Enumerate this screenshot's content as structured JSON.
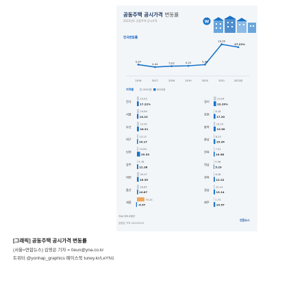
{
  "header": {
    "title_main": "공동주택 공시가격",
    "title_suffix": "변동률",
    "subtitle": "2022년도 공동주택 공시가격",
    "section_label": "전국변동률"
  },
  "chart_data": [
    {
      "type": "line",
      "x": [
        "2016",
        "2017",
        "2018",
        "2019",
        "2020",
        "2021",
        "2022년"
      ],
      "values": [
        5.97,
        4.44,
        5.02,
        5.23,
        5.98,
        19.05,
        17.22
      ],
      "value_labels": [
        "5.97",
        "4.44",
        "5.02",
        "5.23",
        "5.98",
        "19.05",
        "17.22%"
      ],
      "ylim": [
        0,
        22
      ],
      "grid": false,
      "color": "#1a73c7"
    },
    {
      "type": "bar",
      "legend": [
        "지역별",
        "2021년",
        "2022년"
      ],
      "series_colors": [
        "#c5d0da",
        "#1a73c7"
      ],
      "left": [
        {
          "region": "전국",
          "v2021": 19.05,
          "v2022": 17.22,
          "l2021": "19.05",
          "l2022": "17.22%"
        },
        {
          "region": "서울",
          "v2021": 19.89,
          "v2022": 14.22,
          "l2021": "19.89",
          "l2022": "14.22"
        },
        {
          "region": "부산",
          "v2021": 19.55,
          "v2022": 18.31,
          "l2021": "19.55",
          "l2022": "18.31"
        },
        {
          "region": "대구",
          "v2021": 13.13,
          "v2022": 10.17,
          "l2021": "13.13",
          "l2022": "10.17"
        },
        {
          "region": "인천",
          "v2021": 13.6,
          "v2022": 29.33,
          "l2021": "13.60",
          "l2022": "29.33"
        },
        {
          "region": "광주",
          "v2021": 4.76,
          "v2022": 12.38,
          "l2021": "4.76",
          "l2022": "12.38"
        },
        {
          "region": "대전",
          "v2021": 20.57,
          "v2022": 16.35,
          "l2021": "20.57",
          "l2022": "16.35"
        },
        {
          "region": "울산",
          "v2021": 18.65,
          "v2022": 10.87,
          "l2021": "18.65",
          "l2022": "10.87"
        },
        {
          "region": "세종",
          "v2021": 70.24,
          "v2022": -4.57,
          "l2021": "70.24",
          "l2022": "-4.57"
        }
      ],
      "right": [
        {
          "region": "경기",
          "v2021": 23.94,
          "v2022": 23.2,
          "l2021": "23.94",
          "l2022": "23.20%"
        },
        {
          "region": "강원",
          "v2021": 6.18,
          "v2022": 17.2,
          "l2021": "6.18",
          "l2022": "17.20"
        },
        {
          "region": "충북",
          "v2021": 14.2,
          "v2022": 19.5,
          "l2021": "14.20",
          "l2022": "19.50"
        },
        {
          "region": "충남",
          "v2021": 8.23,
          "v2022": 15.34,
          "l2021": "8.23",
          "l2022": "15.34"
        },
        {
          "region": "전북",
          "v2021": 7.41,
          "v2022": 10.58,
          "l2021": "7.41",
          "l2022": "10.58"
        },
        {
          "region": "전남",
          "v2021": 4.48,
          "v2022": 5.29,
          "l2021": "4.48",
          "l2022": "5.29"
        },
        {
          "region": "경북",
          "v2021": 6.28,
          "v2022": 12.22,
          "l2021": "6.28",
          "l2022": "12.22"
        },
        {
          "region": "경남",
          "v2021": 10.14,
          "v2022": 13.14,
          "l2021": "10.14",
          "l2022": "13.14"
        },
        {
          "region": "제주",
          "v2021": 1.73,
          "v2022": 14.57,
          "l2021": "1.73",
          "l2022": "14.57"
        }
      ]
    }
  ],
  "credits": {
    "source": "자료/국토교통부",
    "author": "김영은 기자 20220323",
    "agency": "연합뉴스"
  },
  "caption": {
    "line1": "[그래픽] 공동주택 공시가격 변동률",
    "line2": "(서울=연합뉴스) 김영은 기자 = 0eun@yna.co.kr",
    "line3": "트위터 @yonhap_graphics 페이스북 tuney.kr/LeYN1"
  },
  "colors": {
    "accent": "#1a73c7",
    "prev_year": "#c5d0da",
    "title": "#16325c"
  },
  "icons": [
    "apartment-buildings-icon"
  ]
}
